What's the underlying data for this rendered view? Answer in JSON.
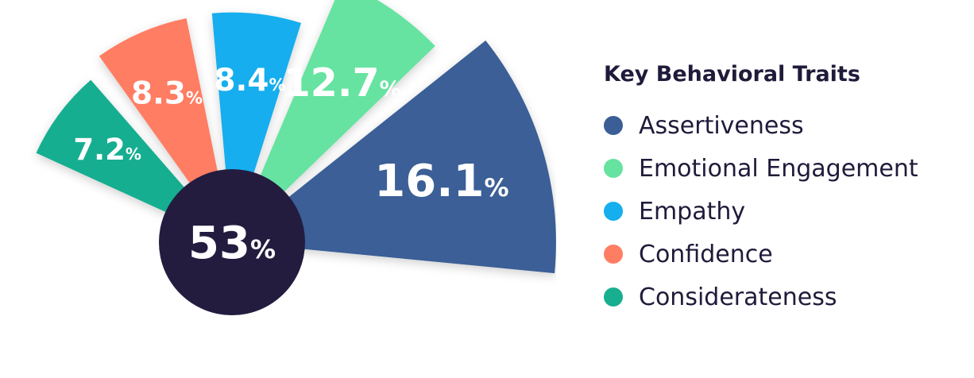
{
  "chart_data": {
    "type": "pie",
    "title": "Key Behavioral Traits",
    "center_label": "53%",
    "slices": [
      {
        "label": "Considerateness",
        "value": 7.2,
        "display": "7.2%",
        "color": "#18ae90"
      },
      {
        "label": "Confidence",
        "value": 8.3,
        "display": "8.3%",
        "color": "#ff7d63"
      },
      {
        "label": "Empathy",
        "value": 8.4,
        "display": "8.4%",
        "color": "#15aeee"
      },
      {
        "label": "Emotional Engagement",
        "value": 12.7,
        "display": "12.7%",
        "color": "#66e3a0"
      },
      {
        "label": "Assertiveness",
        "value": 16.1,
        "display": "16.1%",
        "color": "#3b5e96"
      }
    ],
    "legend": {
      "placement": "right",
      "entries": [
        {
          "label": "Assertiveness",
          "color": "#3b5e96"
        },
        {
          "label": "Emotional Engagement",
          "color": "#66e3a0"
        },
        {
          "label": "Empathy",
          "color": "#15aeee"
        },
        {
          "label": "Confidence",
          "color": "#ff7d63"
        },
        {
          "label": "Considerateness",
          "color": "#18ae90"
        }
      ]
    },
    "center_color": "#231c3f"
  }
}
